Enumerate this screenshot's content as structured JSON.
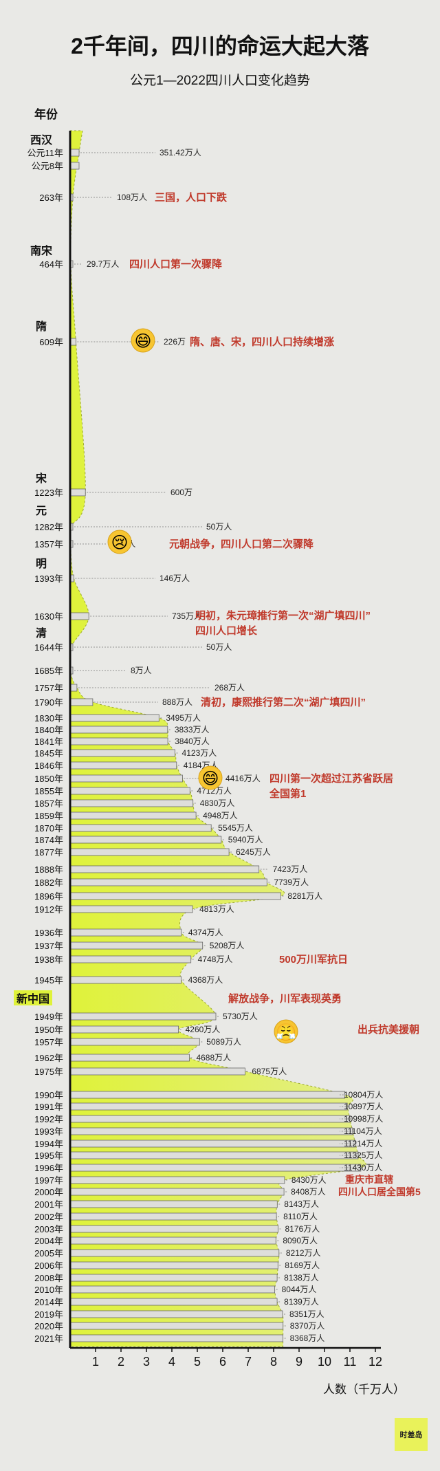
{
  "header": {
    "title": "2千年间，四川的命运大起大落",
    "subtitle": "公元1—2022四川人口变化趋势"
  },
  "brand": "时差岛",
  "chart_data": {
    "type": "bar",
    "orientation": "horizontal",
    "title": "2千年间，四川的命运大起大落",
    "subtitle": "公元1—2022四川人口变化趋势",
    "ylabel": "年份",
    "xlabel": "人数（千万人）",
    "xlim": [
      0,
      12
    ],
    "x_ticks": [
      "1",
      "2",
      "3",
      "4",
      "5",
      "6",
      "7",
      "8",
      "9",
      "10",
      "11",
      "12"
    ],
    "grid": false,
    "colors": {
      "area": "#dff23a",
      "bar": "#dededb",
      "axis": "#111111",
      "annotation": "#c0392b"
    },
    "categories": [
      "公元11年",
      "公元8年",
      "263年",
      "464年",
      "609年",
      "1223年",
      "1282年",
      "1357年",
      "1393年",
      "1630年",
      "1644年",
      "1685年",
      "1757年",
      "1790年",
      "1830年",
      "1840年",
      "1841年",
      "1845年",
      "1846年",
      "1850年",
      "1855年",
      "1857年",
      "1859年",
      "1870年",
      "1874年",
      "1877年",
      "1888年",
      "1882年",
      "1896年",
      "1912年",
      "1936年",
      "1937年",
      "1938年",
      "1945年",
      "1949年",
      "1950年",
      "1957年",
      "1962年",
      "1975年",
      "1990年",
      "1991年",
      "1992年",
      "1993年",
      "1994年",
      "1995年",
      "1996年",
      "1997年",
      "2000年",
      "2001年",
      "2002年",
      "2003年",
      "2004年",
      "2005年",
      "2006年",
      "2008年",
      "2010年",
      "2014年",
      "2019年",
      "2020年",
      "2021年"
    ],
    "values": [
      351.42,
      351.42,
      108,
      29.7,
      226,
      600,
      50,
      20,
      146,
      735,
      50,
      8,
      268,
      888,
      3495,
      3833,
      3840,
      4123,
      4184,
      4416,
      4712,
      4830,
      4948,
      5545,
      5940,
      6245,
      7423,
      7739,
      8281,
      4813,
      4374,
      5208,
      4748,
      4368,
      5730,
      4260,
      5089,
      4688,
      6875,
      10804,
      10897,
      10998,
      11104,
      11214,
      11325,
      11430,
      8430,
      8408,
      8143,
      8110,
      8176,
      8090,
      8212,
      8169,
      8138,
      8044,
      8139,
      8351,
      8370,
      8368
    ],
    "value_labels": [
      "351.42万人",
      "",
      "108万人",
      "29.7万人",
      "226万",
      "600万",
      "50万人",
      "20万人",
      "146万人",
      "735万人",
      "50万人",
      "8万人",
      "268万人",
      "888万人",
      "3495万人",
      "3833万人",
      "3840万人",
      "4123万人",
      "4184万人",
      "4416万人",
      "4712万人",
      "4830万人",
      "4948万人",
      "5545万人",
      "5940万人",
      "6245万人",
      "7423万人",
      "7739万人",
      "8281万人",
      "4813万人",
      "4374万人",
      "5208万人",
      "4748万人",
      "4368万人",
      "5730万人",
      "4260万人",
      "5089万人",
      "4688万人",
      "6875万人",
      "10804万人",
      "10897万人",
      "10998万人",
      "11104万人",
      "11214万人",
      "11325万人",
      "11430万人",
      "8430万人",
      "8408万人",
      "8143万人",
      "8110万人",
      "8176万人",
      "8090万人",
      "8212万人",
      "8169万人",
      "8138万人",
      "8044万人",
      "8139万人",
      "8351万人",
      "8370万人",
      "8368万人"
    ],
    "era_labels": [
      {
        "label": "西汉",
        "before": "公元11年"
      },
      {
        "label": "南宋",
        "before": "464年"
      },
      {
        "label": "隋",
        "before": "609年"
      },
      {
        "label": "宋",
        "before": "1223年"
      },
      {
        "label": "元",
        "before": "1282年"
      },
      {
        "label": "明",
        "before": "1393年"
      },
      {
        "label": "清",
        "before": "1644年"
      },
      {
        "label": "新中国",
        "before": "1949年"
      }
    ],
    "annotations": [
      {
        "text": "三国，人口下跌",
        "at": "263年"
      },
      {
        "text": "四川人口第一次骤降",
        "at": "464年"
      },
      {
        "text": "隋、唐、宋，四川人口持续增涨",
        "at": "609年",
        "emoji": "😄"
      },
      {
        "text": "元朝战争，四川人口第二次骤降",
        "at": "1357年",
        "emoji": "😢"
      },
      {
        "text": "明初，朱元璋推行第一次“湖广填四川”",
        "line2": "四川人口增长",
        "at": "1630年"
      },
      {
        "text": "清初，康熙推行第二次“湖广填四川”",
        "at": "1790年"
      },
      {
        "text": "四川第一次超过江苏省跃居",
        "line2": "全国第1",
        "at": "1850年",
        "emoji": "😄"
      },
      {
        "text": "500万川军抗日",
        "at": "1938年"
      },
      {
        "text": "解放战争，川军表现英勇",
        "at": "新中国"
      },
      {
        "text": "出兵抗美援朝",
        "at": "1950年",
        "emoji": "😤"
      },
      {
        "text": "重庆市直辖",
        "at": "1997年"
      },
      {
        "text": "四川人口居全国第5",
        "at": "2000年"
      }
    ]
  }
}
